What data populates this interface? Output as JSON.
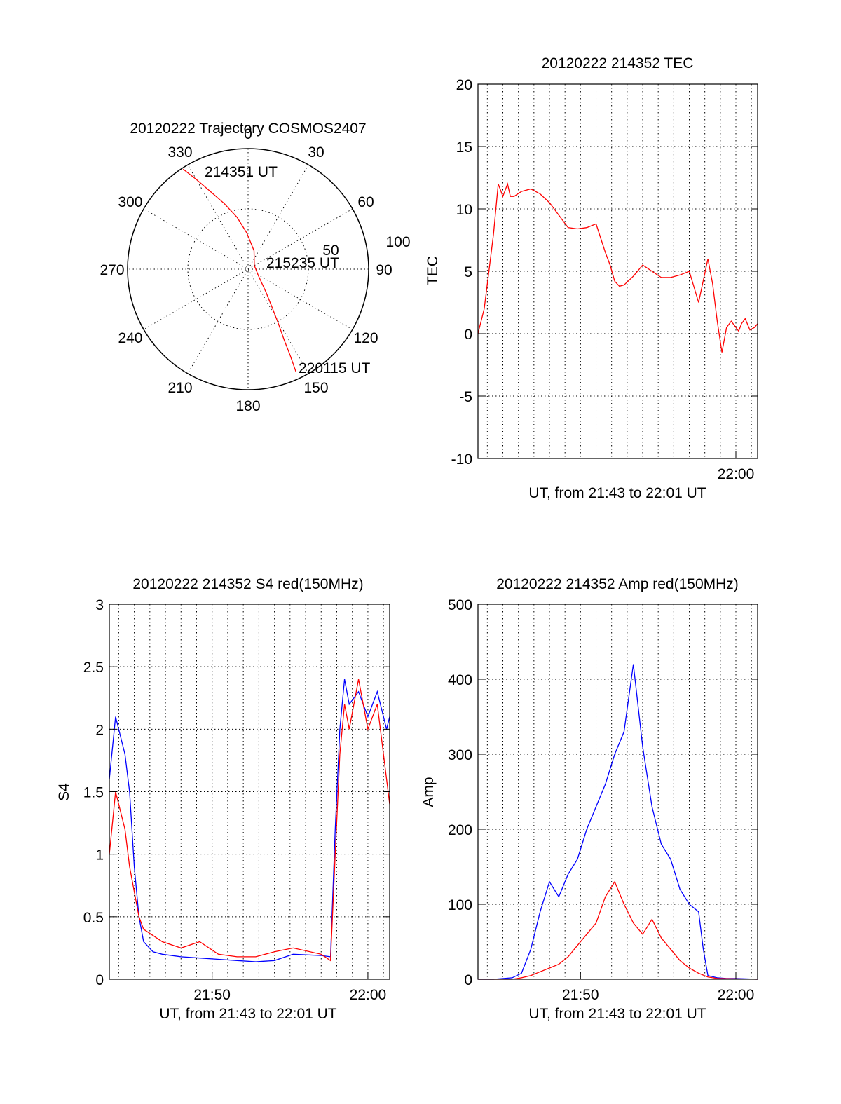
{
  "chart_data": [
    {
      "type": "polar",
      "title": "20120222 Trajectory COSMOS2407",
      "azimuth_labels": [
        "0",
        "30",
        "60",
        "90",
        "120",
        "150",
        "180",
        "210",
        "240",
        "270",
        "300",
        "330"
      ],
      "radial_labels": [
        "50",
        "100"
      ],
      "rlim": [
        0,
        100
      ],
      "start_label": "214351 UT",
      "mid_label": "215235 UT",
      "end_label": "220115 UT",
      "trajectory": [
        [
          327,
          99
        ],
        [
          330,
          86
        ],
        [
          334,
          72
        ],
        [
          340,
          58
        ],
        [
          348,
          44
        ],
        [
          358,
          30
        ],
        [
          18,
          16
        ],
        [
          60,
          6
        ],
        [
          122,
          10
        ],
        [
          142,
          24
        ],
        [
          148,
          38
        ],
        [
          151,
          52
        ],
        [
          153,
          66
        ],
        [
          154,
          80
        ],
        [
          155,
          94
        ]
      ],
      "line_color": "#ff0000"
    },
    {
      "type": "line",
      "title": "20120222 214352 TEC",
      "xlabel": "UT, from 21:43 to 22:01 UT",
      "ylabel": "TEC",
      "xlim": [
        21.7233,
        22.0233
      ],
      "ylim": [
        -10,
        20
      ],
      "yticks": [
        "20",
        "15",
        "10",
        "5",
        "0",
        "-5",
        "-10"
      ],
      "xticks": [
        {
          "label": "22:00",
          "x": 22.0
        }
      ],
      "series": [
        {
          "color": "#ff0000",
          "x": [
            21.7233,
            21.73,
            21.735,
            21.74,
            21.745,
            21.75,
            21.755,
            21.758,
            21.762,
            21.77,
            21.78,
            21.79,
            21.8,
            21.81,
            21.82,
            21.83,
            21.84,
            21.85,
            21.86,
            21.865,
            21.87,
            21.875,
            21.88,
            21.89,
            21.9,
            21.91,
            21.92,
            21.93,
            21.94,
            21.95,
            21.96,
            21.97,
            21.975,
            21.98,
            21.985,
            21.99,
            21.995,
            22.0,
            22.003,
            22.006,
            22.01,
            22.015,
            22.02,
            22.0233
          ],
          "y": [
            0,
            2,
            5,
            8,
            12,
            11,
            12,
            11,
            11,
            11.4,
            11.6,
            11.2,
            10.5,
            9.5,
            8.5,
            8.4,
            8.5,
            8.8,
            6.5,
            5.5,
            4.2,
            3.8,
            3.9,
            4.6,
            5.5,
            5.0,
            4.5,
            4.5,
            4.7,
            5.0,
            2.5,
            6.0,
            4.0,
            1.0,
            -1.5,
            0.5,
            1.0,
            0.5,
            0.2,
            0.8,
            1.2,
            0.3,
            0.5,
            0.8
          ]
        }
      ]
    },
    {
      "type": "line",
      "title": "20120222 214352 S4 red(150MHz)",
      "xlabel": "UT, from 21:43 to 22:01 UT",
      "ylabel": "S4",
      "xlim": [
        21.7233,
        22.0233
      ],
      "ylim": [
        0,
        3
      ],
      "yticks": [
        "3",
        "2.5",
        "2",
        "1.5",
        "1",
        "0.5",
        "0"
      ],
      "xticks": [
        {
          "label": "21:50",
          "x": 21.8333
        },
        {
          "label": "22:00",
          "x": 22.0
        }
      ],
      "series": [
        {
          "color": "#0000ff",
          "x": [
            21.7233,
            21.73,
            21.74,
            21.745,
            21.75,
            21.755,
            21.76,
            21.77,
            21.78,
            21.8,
            21.82,
            21.84,
            21.86,
            21.88,
            21.9,
            21.92,
            21.95,
            21.96,
            21.965,
            21.97,
            21.975,
            21.98,
            21.99,
            22.0,
            22.01,
            22.02,
            22.0233
          ],
          "y": [
            1.6,
            2.1,
            1.8,
            1.5,
            0.9,
            0.5,
            0.3,
            0.22,
            0.2,
            0.18,
            0.17,
            0.16,
            0.15,
            0.14,
            0.15,
            0.2,
            0.19,
            0.18,
            1.2,
            2.0,
            2.4,
            2.2,
            2.3,
            2.1,
            2.3,
            2.0,
            2.1
          ]
        },
        {
          "color": "#ff0000",
          "x": [
            21.7233,
            21.73,
            21.74,
            21.745,
            21.75,
            21.755,
            21.76,
            21.77,
            21.78,
            21.8,
            21.82,
            21.84,
            21.86,
            21.88,
            21.9,
            21.92,
            21.95,
            21.96,
            21.965,
            21.97,
            21.975,
            21.98,
            21.99,
            22.0,
            22.01,
            22.02,
            22.0233
          ],
          "y": [
            1.0,
            1.5,
            1.2,
            0.9,
            0.7,
            0.5,
            0.4,
            0.35,
            0.3,
            0.25,
            0.3,
            0.2,
            0.18,
            0.18,
            0.22,
            0.25,
            0.2,
            0.15,
            1.0,
            1.8,
            2.2,
            2.0,
            2.4,
            2.0,
            2.2,
            1.6,
            1.4
          ]
        }
      ]
    },
    {
      "type": "line",
      "title": "20120222 214352 Amp red(150MHz)",
      "xlabel": "UT, from 21:43 to 22:01 UT",
      "ylabel": "Amp",
      "xlim": [
        21.7233,
        22.0233
      ],
      "ylim": [
        0,
        500
      ],
      "yticks": [
        "500",
        "400",
        "300",
        "200",
        "100",
        "0"
      ],
      "xticks": [
        {
          "label": "21:50",
          "x": 21.8333
        },
        {
          "label": "22:00",
          "x": 22.0
        }
      ],
      "series": [
        {
          "color": "#0000ff",
          "x": [
            21.7233,
            21.74,
            21.76,
            21.77,
            21.78,
            21.79,
            21.8,
            21.81,
            21.82,
            21.83,
            21.84,
            21.85,
            21.86,
            21.87,
            21.88,
            21.89,
            21.9,
            21.91,
            21.92,
            21.93,
            21.94,
            21.95,
            21.96,
            21.965,
            21.97,
            21.98,
            21.99,
            22.0,
            22.0233
          ],
          "y": [
            0,
            0,
            2,
            8,
            40,
            90,
            130,
            110,
            140,
            160,
            200,
            230,
            260,
            300,
            330,
            420,
            310,
            230,
            180,
            160,
            120,
            100,
            90,
            40,
            5,
            2,
            1,
            1,
            0
          ]
        },
        {
          "color": "#ff0000",
          "x": [
            21.7233,
            21.74,
            21.76,
            21.77,
            21.78,
            21.79,
            21.8,
            21.81,
            21.82,
            21.83,
            21.84,
            21.85,
            21.86,
            21.87,
            21.88,
            21.89,
            21.9,
            21.91,
            21.92,
            21.93,
            21.94,
            21.95,
            21.96,
            21.97,
            21.98,
            22.0233
          ],
          "y": [
            0,
            0,
            0,
            2,
            5,
            10,
            15,
            20,
            30,
            45,
            60,
            75,
            110,
            130,
            100,
            75,
            60,
            80,
            55,
            40,
            25,
            15,
            8,
            3,
            1,
            0
          ]
        }
      ]
    }
  ]
}
